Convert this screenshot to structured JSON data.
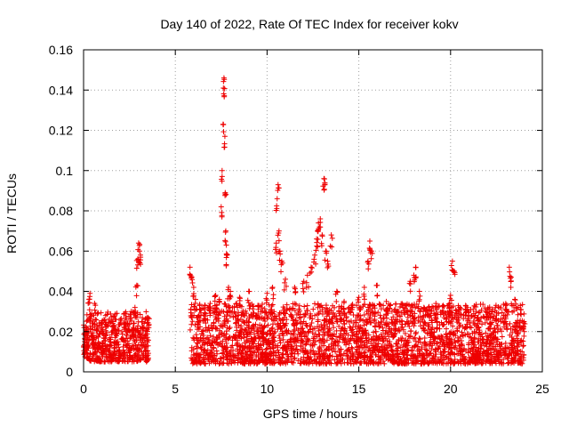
{
  "chart_data": {
    "type": "scatter",
    "title": "Day 140 of 2022, Rate Of TEC Index for receiver kokv",
    "xlabel": "GPS time / hours",
    "ylabel": "ROTI / TECUs",
    "xlim": [
      0,
      25
    ],
    "ylim": [
      0,
      0.16
    ],
    "x_ticks": [
      0,
      5,
      10,
      15,
      20,
      25
    ],
    "y_ticks": [
      0,
      0.02,
      0.04,
      0.06,
      0.08,
      0.1,
      0.12,
      0.14,
      0.16
    ],
    "x_tick_labels": [
      "0",
      "5",
      "10",
      "15",
      "20",
      "25"
    ],
    "y_tick_labels": [
      "0",
      "0.02",
      "0.04",
      "0.06",
      "0.08",
      "0.1",
      "0.12",
      "0.14",
      "0.16"
    ],
    "grid": true,
    "marker": "+",
    "marker_color": "#ee0000",
    "series": [
      {
        "name": "ROTI",
        "points": [
          [
            0.1,
            0.012
          ],
          [
            0.2,
            0.018
          ],
          [
            0.3,
            0.036
          ],
          [
            0.35,
            0.039
          ],
          [
            0.5,
            0.021
          ],
          [
            0.6,
            0.034
          ],
          [
            0.8,
            0.014
          ],
          [
            1.0,
            0.022
          ],
          [
            1.2,
            0.028
          ],
          [
            1.4,
            0.016
          ],
          [
            1.6,
            0.025
          ],
          [
            1.8,
            0.019
          ],
          [
            2.0,
            0.026
          ],
          [
            2.2,
            0.015
          ],
          [
            2.4,
            0.024
          ],
          [
            2.6,
            0.03
          ],
          [
            2.8,
            0.032
          ],
          [
            2.9,
            0.043
          ],
          [
            2.95,
            0.056
          ],
          [
            3.0,
            0.064
          ],
          [
            3.05,
            0.06
          ],
          [
            3.1,
            0.058
          ],
          [
            3.2,
            0.025
          ],
          [
            3.4,
            0.018
          ],
          [
            3.5,
            0.027
          ],
          [
            5.8,
            0.052
          ],
          [
            5.9,
            0.047
          ],
          [
            6.0,
            0.042
          ],
          [
            6.1,
            0.036
          ],
          [
            6.3,
            0.028
          ],
          [
            6.6,
            0.031
          ],
          [
            6.9,
            0.034
          ],
          [
            7.2,
            0.038
          ],
          [
            7.4,
            0.036
          ],
          [
            7.5,
            0.082
          ],
          [
            7.55,
            0.1
          ],
          [
            7.6,
            0.123
          ],
          [
            7.62,
            0.141
          ],
          [
            7.65,
            0.146
          ],
          [
            7.7,
            0.117
          ],
          [
            7.72,
            0.089
          ],
          [
            7.75,
            0.07
          ],
          [
            7.78,
            0.063
          ],
          [
            7.8,
            0.058
          ],
          [
            7.9,
            0.042
          ],
          [
            8.0,
            0.04
          ],
          [
            8.5,
            0.037
          ],
          [
            9.0,
            0.04
          ],
          [
            9.5,
            0.033
          ],
          [
            10.0,
            0.039
          ],
          [
            10.3,
            0.042
          ],
          [
            10.5,
            0.064
          ],
          [
            10.55,
            0.086
          ],
          [
            10.6,
            0.093
          ],
          [
            10.65,
            0.07
          ],
          [
            10.7,
            0.06
          ],
          [
            10.8,
            0.055
          ],
          [
            11.0,
            0.046
          ],
          [
            11.5,
            0.042
          ],
          [
            12.0,
            0.045
          ],
          [
            12.2,
            0.048
          ],
          [
            12.4,
            0.052
          ],
          [
            12.6,
            0.058
          ],
          [
            12.7,
            0.066
          ],
          [
            12.75,
            0.07
          ],
          [
            12.8,
            0.074
          ],
          [
            12.9,
            0.076
          ],
          [
            13.0,
            0.068
          ],
          [
            13.1,
            0.096
          ],
          [
            13.15,
            0.094
          ],
          [
            13.2,
            0.06
          ],
          [
            13.3,
            0.055
          ],
          [
            13.5,
            0.068
          ],
          [
            13.8,
            0.04
          ],
          [
            14.2,
            0.035
          ],
          [
            14.6,
            0.033
          ],
          [
            15.0,
            0.037
          ],
          [
            15.3,
            0.042
          ],
          [
            15.5,
            0.055
          ],
          [
            15.6,
            0.065
          ],
          [
            15.7,
            0.06
          ],
          [
            16.0,
            0.043
          ],
          [
            16.5,
            0.035
          ],
          [
            17.0,
            0.031
          ],
          [
            17.5,
            0.033
          ],
          [
            17.8,
            0.045
          ],
          [
            18.0,
            0.048
          ],
          [
            18.1,
            0.052
          ],
          [
            18.3,
            0.04
          ],
          [
            18.8,
            0.032
          ],
          [
            19.2,
            0.029
          ],
          [
            19.6,
            0.033
          ],
          [
            20.0,
            0.038
          ],
          [
            20.1,
            0.055
          ],
          [
            20.2,
            0.05
          ],
          [
            20.5,
            0.032
          ],
          [
            21.0,
            0.03
          ],
          [
            21.5,
            0.027
          ],
          [
            22.0,
            0.031
          ],
          [
            22.5,
            0.026
          ],
          [
            23.0,
            0.033
          ],
          [
            23.2,
            0.052
          ],
          [
            23.3,
            0.047
          ],
          [
            23.5,
            0.036
          ],
          [
            23.8,
            0.033
          ],
          [
            24.0,
            0.025
          ]
        ],
        "dense_band": {
          "note": "bulk of observations forming a continuous band",
          "segments": [
            {
              "x_start": 0.0,
              "x_end": 3.6,
              "y_low": 0.005,
              "y_high": 0.03
            },
            {
              "x_start": 5.8,
              "x_end": 24.0,
              "y_low": 0.004,
              "y_high": 0.034
            }
          ]
        }
      }
    ]
  }
}
